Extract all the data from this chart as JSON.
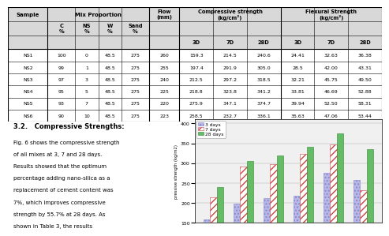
{
  "samples": [
    "NS1",
    "NS2",
    "NS3",
    "NS4",
    "NS5",
    "NS6"
  ],
  "C": [
    "100",
    "99",
    "97",
    "95",
    "93",
    "90"
  ],
  "NS": [
    "0",
    "1",
    "3",
    "5",
    "7",
    "10"
  ],
  "W": [
    "48.5",
    "48.5",
    "48.5",
    "48.5",
    "48.5",
    "48.5"
  ],
  "Sand": [
    "275",
    "275",
    "275",
    "275",
    "275",
    "275"
  ],
  "Flow": [
    "260",
    "255",
    "240",
    "225",
    "220",
    "223"
  ],
  "comp_3D": [
    159.3,
    197.4,
    212.5,
    218.8,
    275.9,
    258.5
  ],
  "comp_7D": [
    214.5,
    291.9,
    297.2,
    323.8,
    347.1,
    232.7
  ],
  "comp_28D": [
    240.6,
    305.0,
    318.5,
    341.2,
    374.7,
    336.1
  ],
  "flex_3D": [
    "24.41",
    "28.5",
    "32.21",
    "33.81",
    "39.94",
    "35.63"
  ],
  "flex_7D": [
    "32.63",
    "42.00",
    "45.75",
    "46.69",
    "52.50",
    "47.06"
  ],
  "flex_28D": [
    "36.38",
    "43.31",
    "49.50",
    "52.88",
    "58.31",
    "53.44"
  ],
  "comp_3D_str": [
    "159.3",
    "197.4",
    "212.5",
    "218.8",
    "275.9",
    "258.5"
  ],
  "comp_7D_str": [
    "214.5",
    "291.9",
    "297.2",
    "323.8",
    "347.1",
    "232.7"
  ],
  "comp_28D_str": [
    "240.6",
    "305.0",
    "318.5",
    "341.2",
    "374.7",
    "336.1"
  ],
  "y_ticks": [
    150,
    200,
    250,
    300,
    350,
    400
  ],
  "legend_labels": [
    "3 days",
    "7 days",
    "28 days"
  ],
  "section_title": "3.2.   Compressive Strengths:",
  "paragraph": "Fig. 6 shows the compressive strength\nof all mixes at 3, 7 and 28 days.\nResults showed that the optimum\npercentage adding nano-silica as a\nreplacement of cement content was\n7%, which improves compressive\nstrength by 55.7% at 28 days. As\nshown in Table 3, the results",
  "bg": "#ffffff",
  "table_header_bg": "#d8d8d8",
  "bar_3d_face": "#b8b8e8",
  "bar_7d_face": "#ffffff",
  "bar_28d_face": "#66bb66",
  "chart_bg": "#f0f0f0"
}
